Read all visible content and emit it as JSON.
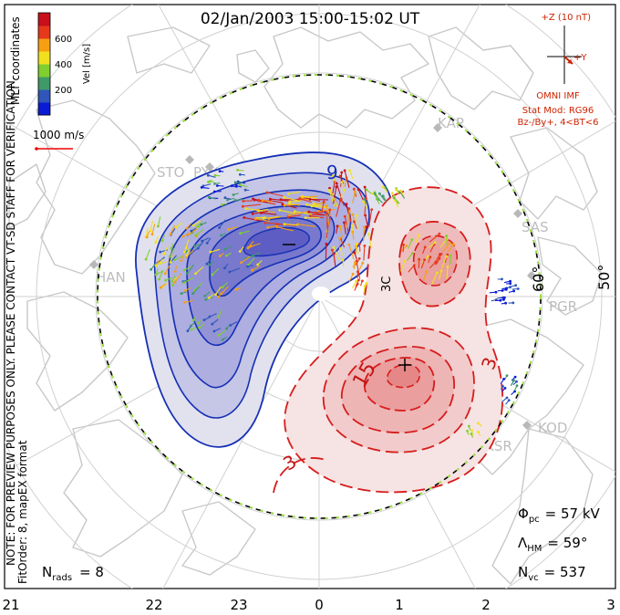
{
  "title": "02/Jan/2003 15:00-15:02 UT",
  "colorbar": {
    "ticks": [
      "600",
      "400",
      "200"
    ],
    "label": "Vel [m/s]",
    "colors": [
      "#0a1bd6",
      "#2f56b8",
      "#3f9a6a",
      "#7fcf2e",
      "#f0e020",
      "#f6a011",
      "#e6391c",
      "#c8101a"
    ]
  },
  "coord_label": "MLT coordinates",
  "ref_vector_label": "1000 m/s",
  "imf": {
    "z_label": "+Z (10 nT)",
    "y_label": "+Y",
    "source": "OMNI IMF",
    "stat_mod": "Stat Mod: RG96",
    "condition": "Bz-/By+, 4<BT<6"
  },
  "notice": "NOTE: FOR PREVIEW PURPOSES ONLY. PLEASE CONTACT VT-SD STAFF FOR VERIFICATION.",
  "fit_order": "FitOrder: 8, mapEX format",
  "stations": [
    "KAP",
    "STO",
    "PYK",
    "HAN",
    "SAS",
    "PGR",
    "KOD",
    "KSR"
  ],
  "lat_labels": [
    "60°",
    "50°"
  ],
  "contour_labels": {
    "neg_a": "9",
    "neg_b": "−",
    "pos_a": "15",
    "pos_b": "3",
    "pos_c": "3",
    "center": "3C"
  },
  "stats": {
    "phi_pc": "Φ",
    "phi_pc_sub": "pc",
    "phi_pc_val": "= 57 kV",
    "lambda_hm": "Λ",
    "lambda_hm_sub": "HM",
    "lambda_hm_val": "= 59°",
    "n_vc": "N",
    "n_vc_sub": "vc",
    "n_vc_val": "= 537",
    "n_rads": "N",
    "n_rads_sub": "rads",
    "n_rads_val": "= 8"
  },
  "mlt_axis": [
    "21",
    "22",
    "23",
    "0",
    "1",
    "2",
    "3"
  ]
}
